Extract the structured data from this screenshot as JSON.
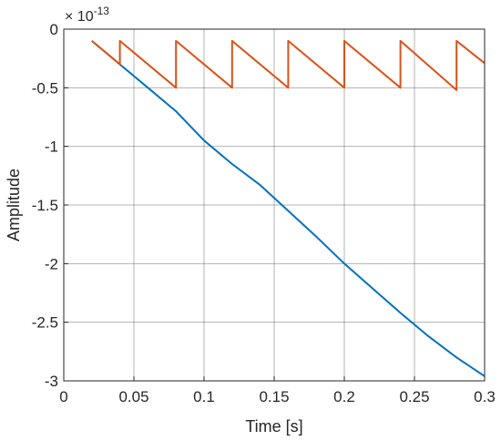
{
  "chart_data": {
    "type": "line",
    "title": "",
    "xlabel": "Time [s]",
    "ylabel": "Amplitude",
    "xlim": [
      0,
      0.3
    ],
    "ylim": [
      -3,
      0
    ],
    "y_exponent_base": "× 10",
    "y_exponent_power": "-13",
    "x_ticks": [
      "0",
      "0.05",
      "0.1",
      "0.15",
      "0.2",
      "0.25",
      "0.3"
    ],
    "y_ticks": [
      "0",
      "-0.5",
      "-1",
      "-1.5",
      "-2",
      "-2.5",
      "-3"
    ],
    "x_tick_values": [
      0,
      0.05,
      0.1,
      0.15,
      0.2,
      0.25,
      0.3
    ],
    "y_tick_values": [
      0,
      -0.5,
      -1,
      -1.5,
      -2,
      -2.5,
      -3
    ],
    "grid": true,
    "series": [
      {
        "color": "#0072BD",
        "x": [
          0.02,
          0.04,
          0.06,
          0.08,
          0.1,
          0.12,
          0.14,
          0.16,
          0.18,
          0.2,
          0.22,
          0.24,
          0.26,
          0.28,
          0.3
        ],
        "y": [
          -0.1,
          -0.3,
          -0.5,
          -0.7,
          -0.95,
          -1.15,
          -1.33,
          -1.55,
          -1.77,
          -2.0,
          -2.21,
          -2.42,
          -2.62,
          -2.8,
          -2.96
        ]
      },
      {
        "color": "#D95319",
        "x": [
          0.02,
          0.04,
          0.04,
          0.08,
          0.08,
          0.12,
          0.12,
          0.16,
          0.16,
          0.2,
          0.2,
          0.24,
          0.24,
          0.28,
          0.28,
          0.3
        ],
        "y": [
          -0.1,
          -0.3,
          -0.1,
          -0.5,
          -0.1,
          -0.5,
          -0.1,
          -0.5,
          -0.1,
          -0.5,
          -0.1,
          -0.5,
          -0.1,
          -0.52,
          -0.1,
          -0.29
        ]
      }
    ]
  }
}
